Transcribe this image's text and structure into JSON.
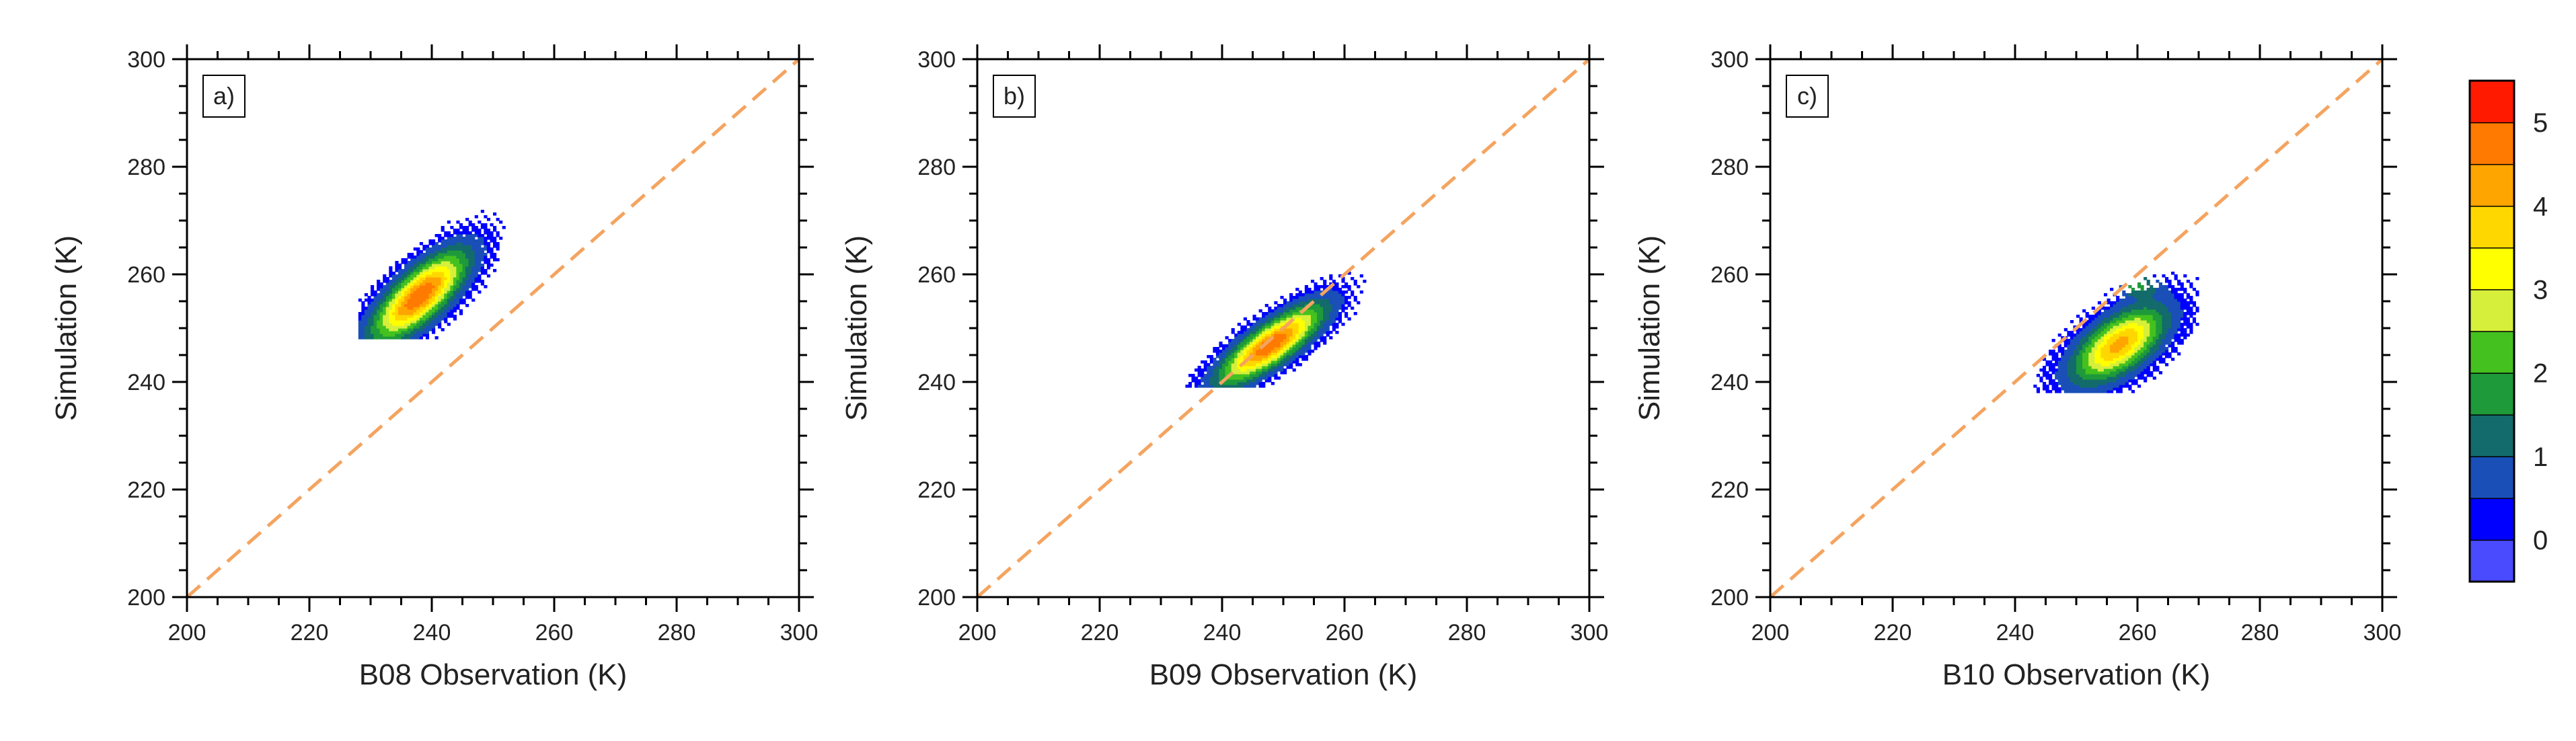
{
  "chart_data": [
    {
      "type": "heatmap",
      "panel_label": "a)",
      "xlabel": "B08 Observation (K)",
      "ylabel": "Simulation (K)",
      "xlim": [
        200,
        300
      ],
      "ylim": [
        200,
        300
      ],
      "xticks": [
        "200",
        "220",
        "240",
        "260",
        "280",
        "300"
      ],
      "yticks": [
        "200",
        "220",
        "240",
        "260",
        "280",
        "300"
      ],
      "reference_line": {
        "from": [
          200,
          200
        ],
        "to": [
          300,
          300
        ],
        "style": "dashed",
        "color": "#f4a460"
      },
      "density": {
        "center": [
          238,
          256
        ],
        "major_axis_angle_deg": 48,
        "major_length": 34,
        "minor_length": 13,
        "x_range": [
          228,
          254
        ],
        "y_range": [
          248,
          275
        ],
        "peak_value": 5.0
      }
    },
    {
      "type": "heatmap",
      "panel_label": "b)",
      "xlabel": "B09 Observation (K)",
      "ylabel": "Simulation (K)",
      "xlim": [
        200,
        300
      ],
      "ylim": [
        200,
        300
      ],
      "xticks": [
        "200",
        "220",
        "240",
        "260",
        "280",
        "300"
      ],
      "yticks": [
        "200",
        "220",
        "240",
        "260",
        "280",
        "300"
      ],
      "reference_line": {
        "from": [
          200,
          200
        ],
        "to": [
          300,
          300
        ],
        "style": "dashed",
        "color": "#f4a460"
      },
      "density": {
        "center": [
          248,
          247
        ],
        "major_axis_angle_deg": 40,
        "major_length": 34,
        "minor_length": 11,
        "x_range": [
          234,
          264
        ],
        "y_range": [
          239,
          262
        ],
        "peak_value": 5.0
      }
    },
    {
      "type": "heatmap",
      "panel_label": "c)",
      "xlabel": "B10 Observation (K)",
      "ylabel": "Simulation (K)",
      "xlim": [
        200,
        300
      ],
      "ylim": [
        200,
        300
      ],
      "xticks": [
        "200",
        "220",
        "240",
        "260",
        "280",
        "300"
      ],
      "yticks": [
        "200",
        "220",
        "240",
        "260",
        "280",
        "300"
      ],
      "reference_line": {
        "from": [
          200,
          200
        ],
        "to": [
          300,
          300
        ],
        "style": "dashed",
        "color": "#f4a460"
      },
      "density": {
        "center": [
          257,
          247
        ],
        "major_axis_angle_deg": 42,
        "major_length": 30,
        "minor_length": 15,
        "x_range": [
          240,
          270
        ],
        "y_range": [
          238,
          262
        ],
        "peak_value": 4.2,
        "secondary_center": [
          260,
          258
        ]
      }
    }
  ],
  "colorbar": {
    "labels": [
      "0",
      "1",
      "2",
      "3",
      "4",
      "5"
    ],
    "levels": [
      0,
      0.5,
      1,
      1.5,
      2,
      2.5,
      3,
      3.5,
      4,
      4.5,
      5
    ],
    "colors": [
      "#4a4aff",
      "#0000ff",
      "#1a4fb8",
      "#136b6b",
      "#1e9a3a",
      "#44c11f",
      "#d6ef3a",
      "#ffff00",
      "#ffd700",
      "#ffa500",
      "#ff7a00",
      "#ff1a00"
    ]
  }
}
